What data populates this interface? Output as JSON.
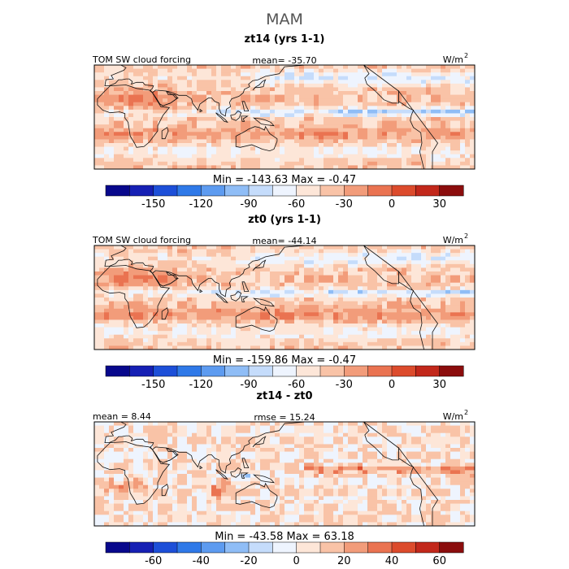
{
  "chart_data": {
    "type": "heatmap",
    "title": "MAM",
    "panels": [
      {
        "title": "zt14 (yrs 1-1)",
        "left_label": "TOM SW cloud forcing",
        "center_label": "mean=  -35.70",
        "units": "W/m",
        "units_exp": "2",
        "min_max": "Min = -143.63  Max =  -0.47",
        "field": "total",
        "colorbar": {
          "ticks": [
            "-150",
            "-120",
            "-90",
            "-60",
            "-30",
            "0",
            "30"
          ],
          "colors": [
            "#08088c",
            "#1620b4",
            "#1d4fd8",
            "#2f79e8",
            "#5d9bf0",
            "#8fbdf6",
            "#c5dcfb",
            "#eef4fe",
            "#fde6d8",
            "#f9c3a7",
            "#f29c7a",
            "#ea7351",
            "#dc4b2c",
            "#c2281b",
            "#8b0d0d"
          ]
        }
      },
      {
        "title": "zt0 (yrs 1-1)",
        "left_label": "TOM SW cloud forcing",
        "center_label": "mean=  -44.14",
        "units": "W/m",
        "units_exp": "2",
        "min_max": "Min = -159.86  Max =  -0.47",
        "field": "total",
        "colorbar": {
          "ticks": [
            "-150",
            "-120",
            "-90",
            "-60",
            "-30",
            "0",
            "30"
          ],
          "colors": [
            "#08088c",
            "#1620b4",
            "#1d4fd8",
            "#2f79e8",
            "#5d9bf0",
            "#8fbdf6",
            "#c5dcfb",
            "#eef4fe",
            "#fde6d8",
            "#f9c3a7",
            "#f29c7a",
            "#ea7351",
            "#dc4b2c",
            "#c2281b",
            "#8b0d0d"
          ]
        }
      },
      {
        "title": "zt14 - zt0",
        "left_label": "mean =   8.44",
        "center_label": "rmse =  15.24",
        "units": "W/m",
        "units_exp": "2",
        "min_max": "Min = -43.58  Max =  63.18",
        "field": "diff",
        "colorbar": {
          "ticks": [
            "-60",
            "-40",
            "-20",
            "0",
            "20",
            "40",
            "60"
          ],
          "colors": [
            "#08088c",
            "#1620b4",
            "#1d4fd8",
            "#2f79e8",
            "#5d9bf0",
            "#8fbdf6",
            "#c5dcfb",
            "#eef4fe",
            "#fde6d8",
            "#f9c3a7",
            "#f29c7a",
            "#ea7351",
            "#dc4b2c",
            "#c2281b",
            "#8b0d0d"
          ]
        }
      }
    ]
  }
}
